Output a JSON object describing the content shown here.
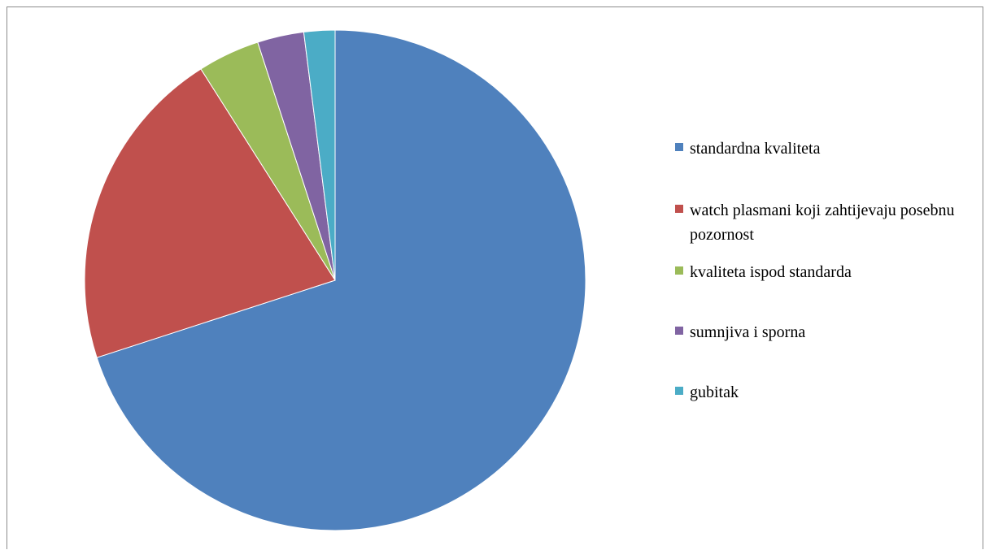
{
  "chart_data": {
    "type": "pie",
    "categories": [
      "standardna kvaliteta",
      "watch plasmani koji zahtijevaju posebnu pozornost",
      "kvaliteta ispod standarda",
      "sumnjiva i sporna",
      "gubitak"
    ],
    "values": [
      70,
      21,
      4,
      3,
      2
    ],
    "colors": [
      "#4f81bd",
      "#c0504d",
      "#9bbb59",
      "#8064a2",
      "#4bacc6"
    ],
    "legend_position": "right"
  }
}
